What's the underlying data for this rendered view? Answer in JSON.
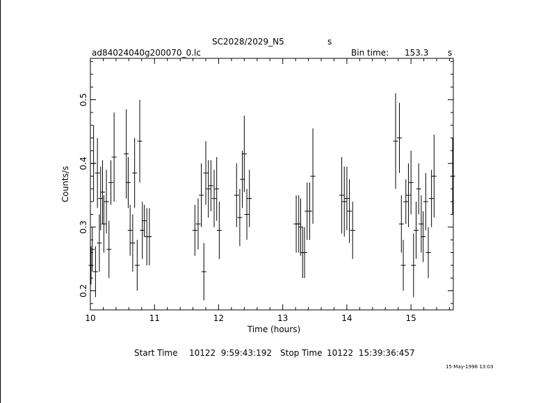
{
  "header": {
    "title": "SC2028/2029_N5",
    "title_unit": "s",
    "filename": "ad84024040g200070_0.lc",
    "bin_time_label": "Bin time:",
    "bin_time_value": "153.3",
    "bin_time_unit": "s"
  },
  "footer": {
    "start_label": "Start Time",
    "start_value": "10122  9:59:43:192",
    "stop_label": "Stop Time",
    "stop_value": "10122  15:39:36:457",
    "plot_date": "15-May-1998 13:03"
  },
  "chart_data": {
    "type": "scatter",
    "title": "SC2028/2029_N5",
    "xlabel": "Time (hours)",
    "ylabel": "Counts/s",
    "xlim": [
      10.0,
      15.66
    ],
    "ylim": [
      0.17,
      0.565
    ],
    "xticks": [
      "10",
      "11",
      "12",
      "13",
      "14",
      "15"
    ],
    "yticks": [
      "0.2",
      "0.3",
      "0.4",
      "0.5"
    ],
    "grid": false,
    "color": "#000000",
    "x": [
      10.01,
      10.03,
      10.05,
      10.08,
      10.11,
      10.14,
      10.16,
      10.19,
      10.21,
      10.25,
      10.29,
      10.32,
      10.37,
      10.56,
      10.59,
      10.62,
      10.66,
      10.69,
      10.73,
      10.77,
      10.81,
      10.84,
      10.88,
      10.92,
      11.63,
      11.68,
      11.73,
      11.77,
      11.8,
      11.84,
      11.88,
      11.93,
      11.97,
      12.01,
      12.28,
      12.33,
      12.37,
      12.4,
      12.44,
      12.48,
      13.21,
      13.25,
      13.28,
      13.31,
      13.34,
      13.38,
      13.42,
      13.47,
      13.92,
      13.96,
      14.0,
      14.04,
      14.09,
      14.76,
      14.82,
      14.85,
      14.88,
      14.92,
      14.96,
      15.0,
      15.04,
      15.08,
      15.12,
      15.16,
      15.19,
      15.23,
      15.27,
      15.32,
      15.36,
      15.65
    ],
    "y": [
      0.24,
      0.265,
      0.4,
      0.23,
      0.385,
      0.275,
      0.345,
      0.355,
      0.305,
      0.34,
      0.265,
      0.37,
      0.41,
      0.415,
      0.37,
      0.295,
      0.275,
      0.385,
      0.24,
      0.435,
      0.295,
      0.31,
      0.285,
      0.285,
      0.295,
      0.305,
      0.35,
      0.23,
      0.385,
      0.36,
      0.365,
      0.345,
      0.36,
      0.295,
      0.35,
      0.315,
      0.375,
      0.415,
      0.32,
      0.345,
      0.305,
      0.305,
      0.3,
      0.26,
      0.26,
      0.325,
      0.325,
      0.38,
      0.35,
      0.34,
      0.345,
      0.325,
      0.295,
      0.435,
      0.44,
      0.305,
      0.24,
      0.34,
      0.35,
      0.37,
      0.24,
      0.295,
      0.36,
      0.305,
      0.285,
      0.34,
      0.26,
      0.345,
      0.38,
      0.38
    ],
    "y_err": [
      0.03,
      0.035,
      0.06,
      0.04,
      0.055,
      0.045,
      0.05,
      0.05,
      0.045,
      0.05,
      0.045,
      0.035,
      0.07,
      0.07,
      0.04,
      0.04,
      0.045,
      0.055,
      0.04,
      0.065,
      0.045,
      0.025,
      0.045,
      0.045,
      0.04,
      0.04,
      0.05,
      0.045,
      0.05,
      0.045,
      0.04,
      0.045,
      0.05,
      0.045,
      0.05,
      0.045,
      0.045,
      0.06,
      0.04,
      0.045,
      0.045,
      0.045,
      0.045,
      0.04,
      0.04,
      0.045,
      0.045,
      0.075,
      0.06,
      0.055,
      0.05,
      0.05,
      0.045,
      0.075,
      0.055,
      0.045,
      0.04,
      0.035,
      0.05,
      0.05,
      0.05,
      0.045,
      0.04,
      0.045,
      0.04,
      0.045,
      0.04,
      0.045,
      0.065,
      0.06
    ]
  }
}
